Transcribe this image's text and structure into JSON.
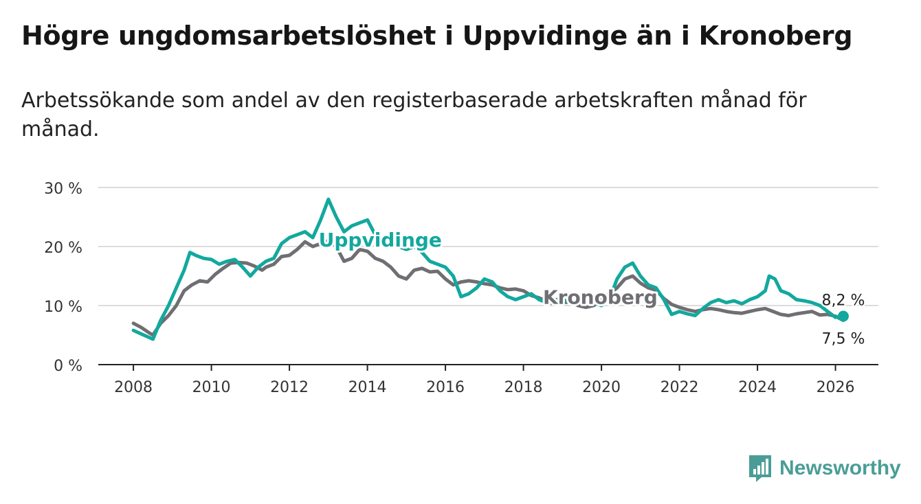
{
  "title": "Högre ungdomsarbetslöshet i Uppvidinge än i Kronoberg",
  "subtitle": "Arbetssökande som andel av den registerbaserade arbetskraften månad för månad.",
  "brand": {
    "name": "Newsworthy",
    "icon": "newsworthy-bar-chart-icon",
    "color": "#4a9d97"
  },
  "chart_data": {
    "type": "line",
    "ylim": [
      0,
      30
    ],
    "xlim": [
      2007.1,
      2027.1
    ],
    "yticks": [
      0,
      10,
      20,
      30
    ],
    "ytick_labels": [
      "0 %",
      "10 %",
      "20 %",
      "30 %"
    ],
    "xticks": [
      2008,
      2010,
      2012,
      2014,
      2016,
      2018,
      2020,
      2022,
      2024,
      2026
    ],
    "xtick_labels": [
      "2008",
      "2010",
      "2012",
      "2014",
      "2016",
      "2018",
      "2020",
      "2022",
      "2024",
      "2026"
    ],
    "grid": true,
    "series": [
      {
        "name": "Kronoberg",
        "color": "#6e6e73",
        "label": "Kronoberg",
        "end_label": "7,5 %",
        "points": [
          [
            2008.0,
            7.0
          ],
          [
            2008.2,
            6.3
          ],
          [
            2008.4,
            5.4
          ],
          [
            2008.5,
            5.0
          ],
          [
            2008.7,
            7.0
          ],
          [
            2008.9,
            8.3
          ],
          [
            2009.1,
            10.0
          ],
          [
            2009.3,
            12.5
          ],
          [
            2009.5,
            13.5
          ],
          [
            2009.7,
            14.2
          ],
          [
            2009.9,
            14.0
          ],
          [
            2010.1,
            15.3
          ],
          [
            2010.3,
            16.3
          ],
          [
            2010.5,
            17.2
          ],
          [
            2010.7,
            17.3
          ],
          [
            2010.9,
            17.2
          ],
          [
            2011.1,
            16.7
          ],
          [
            2011.3,
            16.0
          ],
          [
            2011.4,
            16.5
          ],
          [
            2011.6,
            17.0
          ],
          [
            2011.8,
            18.3
          ],
          [
            2012.0,
            18.5
          ],
          [
            2012.2,
            19.5
          ],
          [
            2012.4,
            20.8
          ],
          [
            2012.6,
            20.0
          ],
          [
            2012.8,
            20.5
          ],
          [
            2013.0,
            21.0
          ],
          [
            2013.2,
            20.0
          ],
          [
            2013.4,
            17.5
          ],
          [
            2013.6,
            18.0
          ],
          [
            2013.8,
            19.5
          ],
          [
            2014.0,
            19.2
          ],
          [
            2014.2,
            18.0
          ],
          [
            2014.4,
            17.5
          ],
          [
            2014.6,
            16.5
          ],
          [
            2014.8,
            15.0
          ],
          [
            2015.0,
            14.5
          ],
          [
            2015.2,
            16.0
          ],
          [
            2015.4,
            16.3
          ],
          [
            2015.6,
            15.7
          ],
          [
            2015.8,
            15.8
          ],
          [
            2016.0,
            14.5
          ],
          [
            2016.2,
            13.5
          ],
          [
            2016.4,
            14.0
          ],
          [
            2016.6,
            14.2
          ],
          [
            2016.8,
            14.0
          ],
          [
            2017.0,
            13.7
          ],
          [
            2017.2,
            13.5
          ],
          [
            2017.4,
            13.0
          ],
          [
            2017.6,
            12.7
          ],
          [
            2017.8,
            12.8
          ],
          [
            2018.0,
            12.5
          ],
          [
            2018.2,
            11.7
          ],
          [
            2018.4,
            11.3
          ],
          [
            2018.6,
            10.7
          ],
          [
            2018.8,
            10.2
          ],
          [
            2019.0,
            10.5
          ],
          [
            2019.2,
            10.6
          ],
          [
            2019.4,
            10.0
          ],
          [
            2019.6,
            9.7
          ],
          [
            2019.8,
            10.0
          ],
          [
            2020.0,
            11.0
          ],
          [
            2020.2,
            12.0
          ],
          [
            2020.4,
            13.0
          ],
          [
            2020.6,
            14.5
          ],
          [
            2020.8,
            15.0
          ],
          [
            2021.0,
            13.8
          ],
          [
            2021.2,
            13.0
          ],
          [
            2021.4,
            12.6
          ],
          [
            2021.6,
            11.2
          ],
          [
            2021.8,
            10.2
          ],
          [
            2022.0,
            9.7
          ],
          [
            2022.2,
            9.3
          ],
          [
            2022.4,
            9.0
          ],
          [
            2022.6,
            9.3
          ],
          [
            2022.8,
            9.5
          ],
          [
            2023.0,
            9.3
          ],
          [
            2023.2,
            9.0
          ],
          [
            2023.4,
            8.8
          ],
          [
            2023.6,
            8.7
          ],
          [
            2023.8,
            9.0
          ],
          [
            2024.0,
            9.3
          ],
          [
            2024.2,
            9.5
          ],
          [
            2024.4,
            9.0
          ],
          [
            2024.6,
            8.5
          ],
          [
            2024.8,
            8.3
          ],
          [
            2025.0,
            8.6
          ],
          [
            2025.2,
            8.8
          ],
          [
            2025.4,
            9.0
          ],
          [
            2025.6,
            8.4
          ],
          [
            2025.8,
            8.5
          ],
          [
            2026.0,
            8.2
          ],
          [
            2026.2,
            7.5
          ]
        ]
      },
      {
        "name": "Uppvidinge",
        "color": "#13a89e",
        "label": "Uppvidinge",
        "end_label": "8,2 %",
        "points": [
          [
            2008.0,
            5.8
          ],
          [
            2008.2,
            5.2
          ],
          [
            2008.4,
            4.6
          ],
          [
            2008.5,
            4.3
          ],
          [
            2008.7,
            7.5
          ],
          [
            2008.9,
            10.0
          ],
          [
            2009.1,
            13.0
          ],
          [
            2009.3,
            16.0
          ],
          [
            2009.45,
            19.0
          ],
          [
            2009.6,
            18.5
          ],
          [
            2009.8,
            18.0
          ],
          [
            2010.0,
            17.8
          ],
          [
            2010.2,
            17.0
          ],
          [
            2010.4,
            17.5
          ],
          [
            2010.6,
            17.8
          ],
          [
            2010.8,
            16.5
          ],
          [
            2011.0,
            15.0
          ],
          [
            2011.2,
            16.5
          ],
          [
            2011.4,
            17.5
          ],
          [
            2011.6,
            18.0
          ],
          [
            2011.8,
            20.5
          ],
          [
            2012.0,
            21.5
          ],
          [
            2012.2,
            22.0
          ],
          [
            2012.4,
            22.5
          ],
          [
            2012.6,
            21.5
          ],
          [
            2012.8,
            24.5
          ],
          [
            2013.0,
            28.0
          ],
          [
            2013.2,
            25.0
          ],
          [
            2013.4,
            22.5
          ],
          [
            2013.6,
            23.5
          ],
          [
            2013.8,
            24.0
          ],
          [
            2014.0,
            24.5
          ],
          [
            2014.2,
            22.0
          ],
          [
            2014.4,
            21.0
          ],
          [
            2014.6,
            21.5
          ],
          [
            2014.8,
            20.0
          ],
          [
            2015.0,
            19.5
          ],
          [
            2015.2,
            20.0
          ],
          [
            2015.4,
            19.0
          ],
          [
            2015.6,
            17.5
          ],
          [
            2015.8,
            17.0
          ],
          [
            2016.0,
            16.5
          ],
          [
            2016.2,
            15.0
          ],
          [
            2016.4,
            11.5
          ],
          [
            2016.6,
            12.0
          ],
          [
            2016.8,
            13.0
          ],
          [
            2017.0,
            14.5
          ],
          [
            2017.2,
            14.0
          ],
          [
            2017.4,
            12.5
          ],
          [
            2017.6,
            11.5
          ],
          [
            2017.8,
            11.0
          ],
          [
            2018.0,
            11.5
          ],
          [
            2018.2,
            12.0
          ],
          [
            2018.4,
            11.0
          ],
          [
            2018.6,
            10.5
          ],
          [
            2018.8,
            11.0
          ],
          [
            2019.0,
            11.0
          ],
          [
            2019.2,
            10.6
          ],
          [
            2019.4,
            10.8
          ],
          [
            2019.6,
            10.4
          ],
          [
            2019.8,
            10.5
          ],
          [
            2020.0,
            10.0
          ],
          [
            2020.2,
            11.0
          ],
          [
            2020.4,
            14.5
          ],
          [
            2020.6,
            16.5
          ],
          [
            2020.8,
            17.2
          ],
          [
            2021.0,
            15.0
          ],
          [
            2021.2,
            13.5
          ],
          [
            2021.4,
            13.0
          ],
          [
            2021.6,
            11.0
          ],
          [
            2021.8,
            8.5
          ],
          [
            2022.0,
            9.0
          ],
          [
            2022.2,
            8.6
          ],
          [
            2022.4,
            8.3
          ],
          [
            2022.6,
            9.5
          ],
          [
            2022.8,
            10.5
          ],
          [
            2023.0,
            11.0
          ],
          [
            2023.2,
            10.5
          ],
          [
            2023.4,
            10.8
          ],
          [
            2023.6,
            10.3
          ],
          [
            2023.8,
            11.0
          ],
          [
            2024.0,
            11.5
          ],
          [
            2024.2,
            12.5
          ],
          [
            2024.3,
            15.0
          ],
          [
            2024.45,
            14.5
          ],
          [
            2024.6,
            12.5
          ],
          [
            2024.8,
            12.0
          ],
          [
            2025.0,
            11.0
          ],
          [
            2025.2,
            10.8
          ],
          [
            2025.4,
            10.5
          ],
          [
            2025.6,
            10.0
          ],
          [
            2025.8,
            9.0
          ],
          [
            2026.0,
            8.0
          ],
          [
            2026.2,
            8.2
          ]
        ]
      }
    ]
  }
}
